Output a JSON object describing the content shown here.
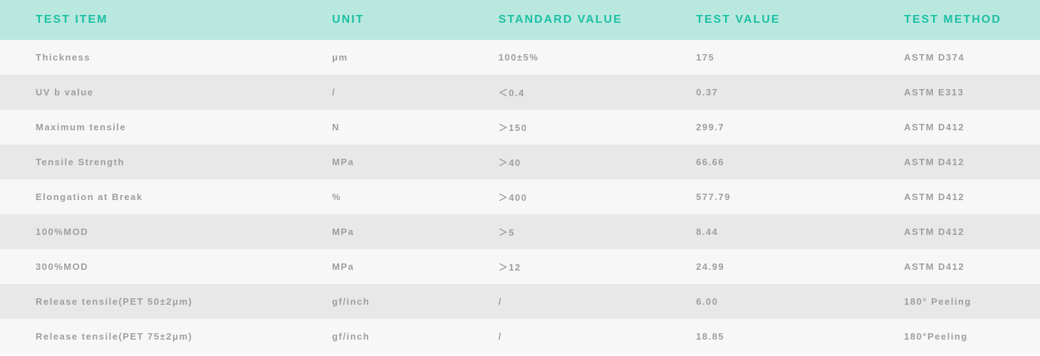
{
  "table": {
    "type": "table",
    "header_bg_color": "#b9e8df",
    "header_text_color": "#1bc0a4",
    "odd_row_bg_color": "#f7f7f7",
    "even_row_bg_color": "#e8e8e8",
    "data_text_color": "#9e9e9e",
    "header_fontsize": 16,
    "data_fontsize": 13,
    "columns": [
      {
        "label": "TEST ITEM",
        "width_pct": 28.5
      },
      {
        "label": "UNIT",
        "width_pct": 16
      },
      {
        "label": "STANDARD VALUE",
        "width_pct": 19
      },
      {
        "label": "TEST VALUE",
        "width_pct": 20
      },
      {
        "label": "TEST METHOD",
        "width_pct": 16.5
      }
    ],
    "rows": [
      {
        "test_item": "Thickness",
        "unit": "μm",
        "standard_value": "100±5%",
        "test_value": "175",
        "test_method": "ASTM D374"
      },
      {
        "test_item": "UV b value",
        "unit": "/",
        "standard_value": "＜0.4",
        "test_value": "0.37",
        "test_method": "ASTM E313"
      },
      {
        "test_item": "Maximum tensile",
        "unit": "N",
        "standard_value": "＞150",
        "test_value": "299.7",
        "test_method": "ASTM D412"
      },
      {
        "test_item": "Tensile Strength",
        "unit": "MPa",
        "standard_value": "＞40",
        "test_value": "66.66",
        "test_method": "ASTM D412"
      },
      {
        "test_item": "Elongation at Break",
        "unit": "%",
        "standard_value": "＞400",
        "test_value": "577.79",
        "test_method": "ASTM D412"
      },
      {
        "test_item": "100%MOD",
        "unit": "MPa",
        "standard_value": "＞5",
        "test_value": "8.44",
        "test_method": "ASTM D412"
      },
      {
        "test_item": "300%MOD",
        "unit": "MPa",
        "standard_value": "＞12",
        "test_value": "24.99",
        "test_method": "ASTM D412"
      },
      {
        "test_item": "Release tensile(PET 50±2μm)",
        "unit": "gf/inch",
        "standard_value": "/",
        "test_value": "6.00",
        "test_method": "180° Peeling"
      },
      {
        "test_item": "Release tensile(PET 75±2μm)",
        "unit": "gf/inch",
        "standard_value": "/",
        "test_value": "18.85",
        "test_method": "180°Peeling"
      }
    ]
  }
}
